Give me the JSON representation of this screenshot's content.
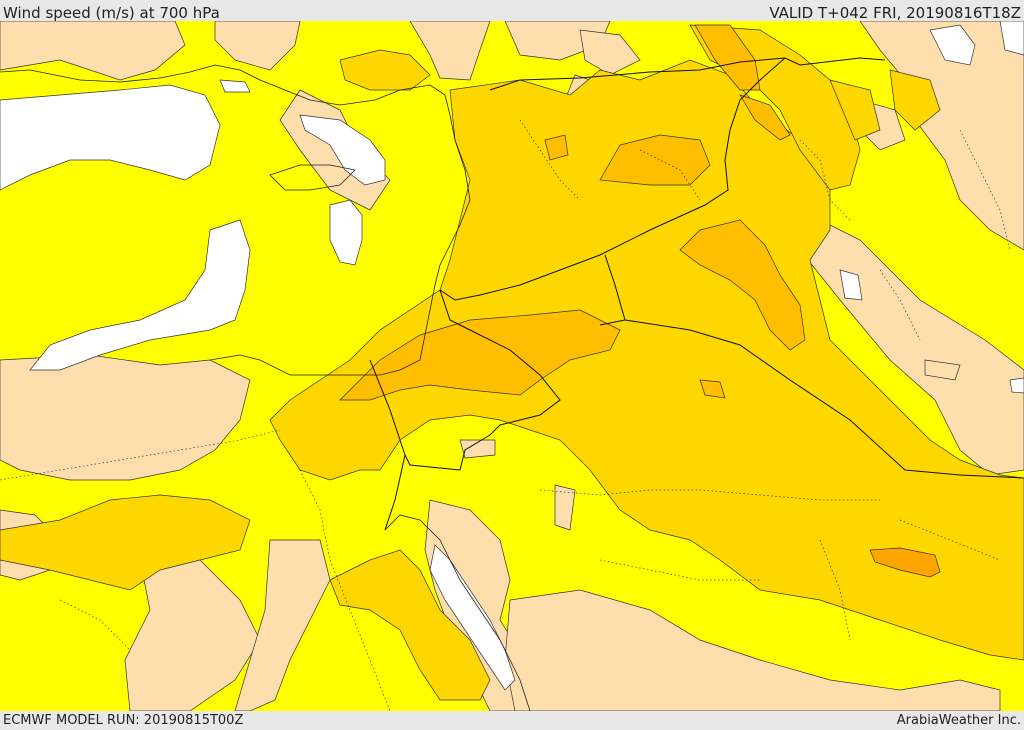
{
  "header": {
    "title": "Wind speed (m/s) at 700 hPa",
    "valid": "VALID T+042 FRI, 20190816T18Z"
  },
  "footer": {
    "model_run": "ECMWF MODEL RUN: 20190815T00Z",
    "credit": "ArabiaWeather Inc."
  },
  "legend_colors": {
    "calm": "#ffffff",
    "light": "#ffdead",
    "moderate": "#ffff00",
    "fresh": "#ffd700",
    "strong": "#ffb700",
    "stronger": "#ffa500"
  }
}
